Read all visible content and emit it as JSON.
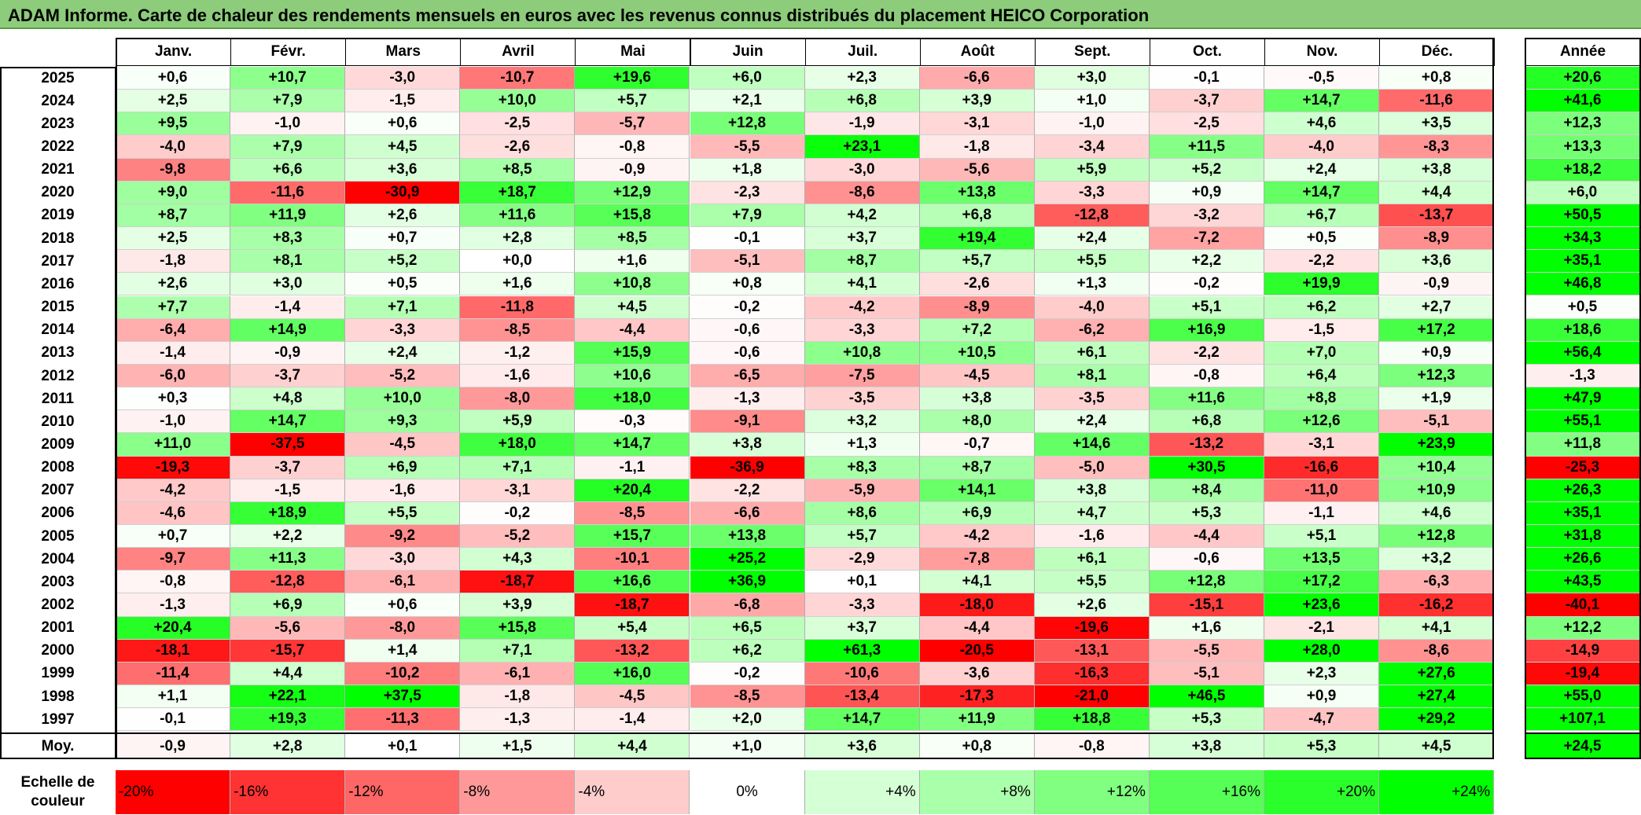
{
  "title": "ADAM Informe. Carte de chaleur des rendements mensuels en euros avec les revenus connus distribués du placement HEICO Corporation",
  "chart_data": {
    "type": "heatmap",
    "title": "ADAM Informe. Carte de chaleur des rendements mensuels en euros avec les revenus connus distribués du placement HEICO Corporation",
    "columns": [
      "Janv.",
      "Févr.",
      "Mars",
      "Avril",
      "Mai",
      "Juin",
      "Juil.",
      "Août",
      "Sept.",
      "Oct.",
      "Nov.",
      "Déc."
    ],
    "annual_header": "Année",
    "rows": [
      {
        "year": "2025",
        "values": [
          "+0,6",
          "+10,7",
          "-3,0",
          "-10,7",
          "+19,6",
          "+6,0",
          "+2,3",
          "-6,6",
          "+3,0",
          "-0,1",
          "-0,5",
          "+0,8"
        ],
        "annual": "+20,6"
      },
      {
        "year": "2024",
        "values": [
          "+2,5",
          "+7,9",
          "-1,5",
          "+10,0",
          "+5,7",
          "+2,1",
          "+6,8",
          "+3,9",
          "+1,0",
          "-3,7",
          "+14,7",
          "-11,6"
        ],
        "annual": "+41,6"
      },
      {
        "year": "2023",
        "values": [
          "+9,5",
          "-1,0",
          "+0,6",
          "-2,5",
          "-5,7",
          "+12,8",
          "-1,9",
          "-3,1",
          "-1,0",
          "-2,5",
          "+4,6",
          "+3,5"
        ],
        "annual": "+12,3"
      },
      {
        "year": "2022",
        "values": [
          "-4,0",
          "+7,9",
          "+4,5",
          "-2,6",
          "-0,8",
          "-5,5",
          "+23,1",
          "-1,8",
          "-3,4",
          "+11,5",
          "-4,0",
          "-8,3"
        ],
        "annual": "+13,3"
      },
      {
        "year": "2021",
        "values": [
          "-9,8",
          "+6,6",
          "+3,6",
          "+8,5",
          "-0,9",
          "+1,8",
          "-3,0",
          "-5,6",
          "+5,9",
          "+5,2",
          "+2,4",
          "+3,8"
        ],
        "annual": "+18,2"
      },
      {
        "year": "2020",
        "values": [
          "+9,0",
          "-11,6",
          "-30,9",
          "+18,7",
          "+12,9",
          "-2,3",
          "-8,6",
          "+13,8",
          "-3,3",
          "+0,9",
          "+14,7",
          "+4,4"
        ],
        "annual": "+6,0"
      },
      {
        "year": "2019",
        "values": [
          "+8,7",
          "+11,9",
          "+2,6",
          "+11,6",
          "+15,8",
          "+7,9",
          "+4,2",
          "+6,8",
          "-12,8",
          "-3,2",
          "+6,7",
          "-13,7"
        ],
        "annual": "+50,5"
      },
      {
        "year": "2018",
        "values": [
          "+2,5",
          "+8,3",
          "+0,7",
          "+2,8",
          "+8,5",
          "-0,1",
          "+3,7",
          "+19,4",
          "+2,4",
          "-7,2",
          "+0,5",
          "-8,9"
        ],
        "annual": "+34,3"
      },
      {
        "year": "2017",
        "values": [
          "-1,8",
          "+8,1",
          "+5,2",
          "+0,0",
          "+1,6",
          "-5,1",
          "+8,7",
          "+5,7",
          "+5,5",
          "+2,2",
          "-2,2",
          "+3,6"
        ],
        "annual": "+35,1"
      },
      {
        "year": "2016",
        "values": [
          "+2,6",
          "+3,0",
          "+0,5",
          "+1,6",
          "+10,8",
          "+0,8",
          "+4,1",
          "-2,6",
          "+1,3",
          "-0,2",
          "+19,9",
          "-0,9"
        ],
        "annual": "+46,8"
      },
      {
        "year": "2015",
        "values": [
          "+7,7",
          "-1,4",
          "+7,1",
          "-11,8",
          "+4,5",
          "-0,2",
          "-4,2",
          "-8,9",
          "-4,0",
          "+5,1",
          "+6,2",
          "+2,7"
        ],
        "annual": "+0,5"
      },
      {
        "year": "2014",
        "values": [
          "-6,4",
          "+14,9",
          "-3,3",
          "-8,5",
          "-4,4",
          "-0,6",
          "-3,3",
          "+7,2",
          "-6,2",
          "+16,9",
          "-1,5",
          "+17,2"
        ],
        "annual": "+18,6"
      },
      {
        "year": "2013",
        "values": [
          "-1,4",
          "-0,9",
          "+2,4",
          "-1,2",
          "+15,9",
          "-0,6",
          "+10,8",
          "+10,5",
          "+6,1",
          "-2,2",
          "+7,0",
          "+0,9"
        ],
        "annual": "+56,4"
      },
      {
        "year": "2012",
        "values": [
          "-6,0",
          "-3,7",
          "-5,2",
          "-1,6",
          "+10,6",
          "-6,5",
          "-7,5",
          "-4,5",
          "+8,1",
          "-0,8",
          "+6,4",
          "+12,3"
        ],
        "annual": "-1,3"
      },
      {
        "year": "2011",
        "values": [
          "+0,3",
          "+4,8",
          "+10,0",
          "-8,0",
          "+18,0",
          "-1,3",
          "-3,5",
          "+3,8",
          "-3,5",
          "+11,6",
          "+8,8",
          "+1,9"
        ],
        "annual": "+47,9"
      },
      {
        "year": "2010",
        "values": [
          "-1,0",
          "+14,7",
          "+9,3",
          "+5,9",
          "-0,3",
          "-9,1",
          "+3,2",
          "+8,0",
          "+2,4",
          "+6,8",
          "+12,6",
          "-5,1"
        ],
        "annual": "+55,1"
      },
      {
        "year": "2009",
        "values": [
          "+11,0",
          "-37,5",
          "-4,5",
          "+18,0",
          "+14,7",
          "+3,8",
          "+1,3",
          "-0,7",
          "+14,6",
          "-13,2",
          "-3,1",
          "+23,9"
        ],
        "annual": "+11,8"
      },
      {
        "year": "2008",
        "values": [
          "-19,3",
          "-3,7",
          "+6,9",
          "+7,1",
          "-1,1",
          "-36,9",
          "+8,3",
          "+8,7",
          "-5,0",
          "+30,5",
          "-16,6",
          "+10,4"
        ],
        "annual": "-25,3"
      },
      {
        "year": "2007",
        "values": [
          "-4,2",
          "-1,5",
          "-1,6",
          "-3,1",
          "+20,4",
          "-2,2",
          "-5,9",
          "+14,1",
          "+3,8",
          "+8,4",
          "-11,0",
          "+10,9"
        ],
        "annual": "+26,3"
      },
      {
        "year": "2006",
        "values": [
          "-4,6",
          "+18,9",
          "+5,5",
          "-0,2",
          "-8,5",
          "-6,6",
          "+8,6",
          "+6,9",
          "+4,7",
          "+5,3",
          "-1,1",
          "+4,6"
        ],
        "annual": "+35,1"
      },
      {
        "year": "2005",
        "values": [
          "+0,7",
          "+2,2",
          "-9,2",
          "-5,2",
          "+15,7",
          "+13,8",
          "+5,7",
          "-4,2",
          "-1,6",
          "-4,4",
          "+5,1",
          "+12,8"
        ],
        "annual": "+31,8"
      },
      {
        "year": "2004",
        "values": [
          "-9,7",
          "+11,3",
          "-3,0",
          "+4,3",
          "-10,1",
          "+25,2",
          "-2,9",
          "-7,8",
          "+6,1",
          "-0,6",
          "+13,5",
          "+3,2"
        ],
        "annual": "+26,6"
      },
      {
        "year": "2003",
        "values": [
          "-0,8",
          "-12,8",
          "-6,1",
          "-18,7",
          "+16,6",
          "+36,9",
          "+0,1",
          "+4,1",
          "+5,5",
          "+12,8",
          "+17,2",
          "-6,3"
        ],
        "annual": "+43,5"
      },
      {
        "year": "2002",
        "values": [
          "-1,3",
          "+6,9",
          "+0,6",
          "+3,9",
          "-18,7",
          "-6,8",
          "-3,3",
          "-18,0",
          "+2,6",
          "-15,1",
          "+23,6",
          "-16,2"
        ],
        "annual": "-40,1"
      },
      {
        "year": "2001",
        "values": [
          "+20,4",
          "-5,6",
          "-8,0",
          "+15,8",
          "+5,4",
          "+6,5",
          "+3,7",
          "-4,4",
          "-19,6",
          "+1,6",
          "-2,1",
          "+4,1"
        ],
        "annual": "+12,2"
      },
      {
        "year": "2000",
        "values": [
          "-18,1",
          "-15,7",
          "+1,4",
          "+7,1",
          "-13,2",
          "+6,2",
          "+61,3",
          "-20,5",
          "-13,1",
          "-5,5",
          "+28,0",
          "-8,6"
        ],
        "annual": "-14,9"
      },
      {
        "year": "1999",
        "values": [
          "-11,4",
          "+4,4",
          "-10,2",
          "-6,1",
          "+16,0",
          "-0,2",
          "-10,6",
          "-3,6",
          "-16,3",
          "-5,1",
          "+2,3",
          "+27,6"
        ],
        "annual": "-19,4"
      },
      {
        "year": "1998",
        "values": [
          "+1,1",
          "+22,1",
          "+37,5",
          "-1,8",
          "-4,5",
          "-8,5",
          "-13,4",
          "-17,3",
          "-21,0",
          "+46,5",
          "+0,9",
          "+27,4"
        ],
        "annual": "+55,0"
      },
      {
        "year": "1997",
        "values": [
          "-0,1",
          "+19,3",
          "-11,3",
          "-1,3",
          "-1,4",
          "+2,0",
          "+14,7",
          "+11,9",
          "+18,8",
          "+5,3",
          "-4,7",
          "+29,2"
        ],
        "annual": "+107,1"
      }
    ],
    "average": {
      "label": "Moy.",
      "values": [
        "-0,9",
        "+2,8",
        "+0,1",
        "+1,5",
        "+4,4",
        "+1,0",
        "+3,6",
        "+0,8",
        "-0,8",
        "+3,8",
        "+5,3",
        "+4,5"
      ],
      "annual": "+24,5"
    },
    "scale": {
      "label": "Echelle de couleur",
      "steps": [
        "-20%",
        "-16%",
        "-12%",
        "-8%",
        "-4%",
        "0%",
        "+4%",
        "+8%",
        "+12%",
        "+16%",
        "+20%",
        "+24%"
      ],
      "step_values": [
        -20,
        -16,
        -12,
        -8,
        -4,
        0,
        4,
        8,
        12,
        16,
        20,
        24
      ]
    },
    "colors": {
      "negative": "#ff0000",
      "neutral": "#ffffff",
      "positive": "#00ff00"
    }
  }
}
